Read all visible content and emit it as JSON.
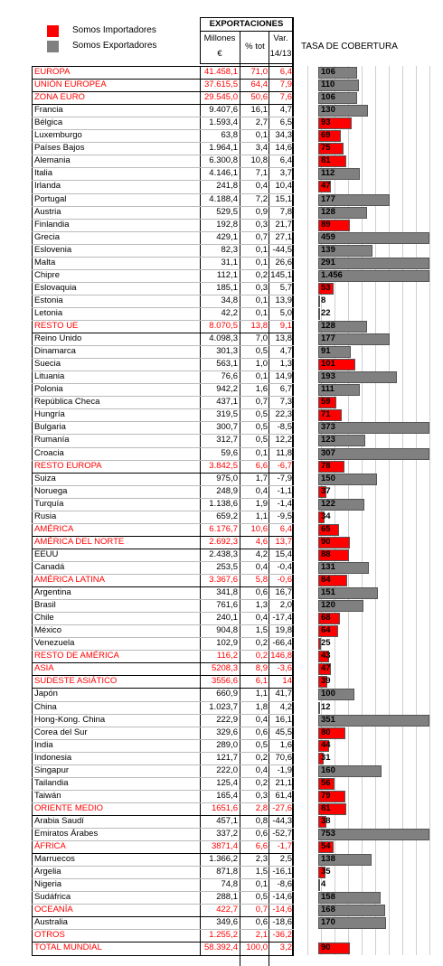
{
  "legend": [
    {
      "label": "Somos Importadores",
      "color": "#ff0000"
    },
    {
      "label": "Somos Exportadores",
      "color": "#808080"
    }
  ],
  "header": {
    "group": "EXPORTACIONES",
    "millones": "Millones",
    "euro": "€",
    "pct": "% tot",
    "var": "Var.",
    "var_period": "14/13",
    "tasa": "TASA DE COBERTURA"
  },
  "rows": [
    {
      "name": "EUROPA",
      "millones": "41.458,1",
      "pct": "71,0",
      "var": "6,4",
      "tasa": 106,
      "color": "#808080",
      "aggregate": true
    },
    {
      "name": "UNIÓN EUROPEA",
      "millones": "37.615,5",
      "pct": "64,4",
      "var": "7,9",
      "tasa": 110,
      "color": "#808080",
      "aggregate": true
    },
    {
      "name": "ZONA EURO",
      "millones": "29.545,0",
      "pct": "50,6",
      "var": "7,6",
      "tasa": 106,
      "color": "#808080",
      "aggregate": true
    },
    {
      "name": "Francia",
      "millones": "9.407,6",
      "pct": "16,1",
      "var": "4,7",
      "tasa": 130,
      "color": "#808080",
      "aggregate": false
    },
    {
      "name": "Bélgica",
      "millones": "1.593,4",
      "pct": "2,7",
      "var": "6,5",
      "tasa": 93,
      "color": "#ff0000",
      "aggregate": false
    },
    {
      "name": "Luxemburgo",
      "millones": "63,8",
      "pct": "0,1",
      "var": "34,3",
      "tasa": 69,
      "color": "#ff0000",
      "aggregate": false
    },
    {
      "name": "Países Bajos",
      "millones": "1.964,1",
      "pct": "3,4",
      "var": "14,6",
      "tasa": 75,
      "color": "#ff0000",
      "aggregate": false
    },
    {
      "name": "Alemania",
      "millones": "6.300,8",
      "pct": "10,8",
      "var": "6,4",
      "tasa": 81,
      "color": "#ff0000",
      "aggregate": false
    },
    {
      "name": "Italia",
      "millones": "4.146,1",
      "pct": "7,1",
      "var": "3,7",
      "tasa": 112,
      "color": "#808080",
      "aggregate": false
    },
    {
      "name": "Irlanda",
      "millones": "241,8",
      "pct": "0,4",
      "var": "10,4",
      "tasa": 47,
      "color": "#ff0000",
      "aggregate": false
    },
    {
      "name": "Portugal",
      "millones": "4.188,4",
      "pct": "7,2",
      "var": "15,1",
      "tasa": 177,
      "color": "#808080",
      "aggregate": false
    },
    {
      "name": "Austria",
      "millones": "529,5",
      "pct": "0,9",
      "var": "7,8",
      "tasa": 128,
      "color": "#808080",
      "aggregate": false
    },
    {
      "name": "Finlandia",
      "millones": "192,8",
      "pct": "0,3",
      "var": "21,7",
      "tasa": 89,
      "color": "#ff0000",
      "aggregate": false
    },
    {
      "name": "Grecia",
      "millones": "429,1",
      "pct": "0,7",
      "var": "27,1",
      "tasa": 459,
      "color": "#808080",
      "aggregate": false
    },
    {
      "name": "Eslovenia",
      "millones": "82,3",
      "pct": "0,1",
      "var": "-44,5",
      "tasa": 139,
      "color": "#808080",
      "aggregate": false
    },
    {
      "name": "Malta",
      "millones": "31,1",
      "pct": "0,1",
      "var": "26,6",
      "tasa": 291,
      "color": "#808080",
      "aggregate": false
    },
    {
      "name": "Chipre",
      "millones": "112,1",
      "pct": "0,2",
      "var": "145,1",
      "tasa": 1456,
      "tasa_label": "1.456",
      "color": "#808080",
      "aggregate": false
    },
    {
      "name": "Eslovaquia",
      "millones": "185,1",
      "pct": "0,3",
      "var": "5,7",
      "tasa": 53,
      "color": "#ff0000",
      "aggregate": false
    },
    {
      "name": "Estonia",
      "millones": "34,8",
      "pct": "0,1",
      "var": "13,9",
      "tasa": 8,
      "color": "#ff0000",
      "aggregate": false
    },
    {
      "name": "Letonia",
      "millones": "42,2",
      "pct": "0,1",
      "var": "5,0",
      "tasa": 22,
      "color": "#ff0000",
      "aggregate": false
    },
    {
      "name": "RESTO UE",
      "millones": "8.070,5",
      "pct": "13,8",
      "var": "9,1",
      "tasa": 128,
      "color": "#808080",
      "aggregate": true
    },
    {
      "name": "Reino Unido",
      "millones": "4.098,3",
      "pct": "7,0",
      "var": "13,8",
      "tasa": 177,
      "color": "#808080",
      "aggregate": false
    },
    {
      "name": "Dinamarca",
      "millones": "301,3",
      "pct": "0,5",
      "var": "4,7",
      "tasa": 91,
      "color": "#808080",
      "aggregate": false
    },
    {
      "name": "Suecia",
      "millones": "563,1",
      "pct": "1,0",
      "var": "1,3",
      "tasa": 101,
      "color": "#ff0000",
      "aggregate": false
    },
    {
      "name": "Lituania",
      "millones": "76,6",
      "pct": "0,1",
      "var": "14,9",
      "tasa": 193,
      "color": "#808080",
      "aggregate": false
    },
    {
      "name": "Polonia",
      "millones": "942,2",
      "pct": "1,6",
      "var": "6,7",
      "tasa": 111,
      "color": "#808080",
      "aggregate": false
    },
    {
      "name": "República Checa",
      "millones": "437,1",
      "pct": "0,7",
      "var": "7,3",
      "tasa": 59,
      "color": "#ff0000",
      "aggregate": false
    },
    {
      "name": "Hungría",
      "millones": "319,5",
      "pct": "0,5",
      "var": "22,3",
      "tasa": 71,
      "color": "#ff0000",
      "aggregate": false
    },
    {
      "name": "Bulgaria",
      "millones": "300,7",
      "pct": "0,5",
      "var": "-8,5",
      "tasa": 373,
      "color": "#808080",
      "aggregate": false
    },
    {
      "name": "Rumanía",
      "millones": "312,7",
      "pct": "0,5",
      "var": "12,2",
      "tasa": 123,
      "color": "#808080",
      "aggregate": false
    },
    {
      "name": "Croacia",
      "millones": "59,6",
      "pct": "0,1",
      "var": "11,8",
      "tasa": 307,
      "color": "#808080",
      "aggregate": false
    },
    {
      "name": "RESTO EUROPA",
      "millones": "3.842,5",
      "pct": "6,6",
      "var": "-6,7",
      "tasa": 78,
      "color": "#ff0000",
      "aggregate": true
    },
    {
      "name": "Suiza",
      "millones": "975,0",
      "pct": "1,7",
      "var": "-7,9",
      "tasa": 150,
      "color": "#808080",
      "aggregate": false
    },
    {
      "name": "Noruega",
      "millones": "248,9",
      "pct": "0,4",
      "var": "-1,1",
      "tasa": 37,
      "color": "#ff0000",
      "aggregate": false
    },
    {
      "name": "Turquía",
      "millones": "1.138,6",
      "pct": "1,9",
      "var": "-1,4",
      "tasa": 122,
      "color": "#808080",
      "aggregate": false
    },
    {
      "name": "Rusia",
      "millones": "659,2",
      "pct": "1,1",
      "var": "-9,5",
      "tasa": 34,
      "color": "#ff0000",
      "aggregate": false
    },
    {
      "name": "AMÉRICA",
      "millones": "6.176,7",
      "pct": "10,6",
      "var": "6,4",
      "tasa": 65,
      "color": "#ff0000",
      "aggregate": true
    },
    {
      "name": "AMÉRICA DEL NORTE",
      "millones": "2.692,3",
      "pct": "4,6",
      "var": "13,7",
      "tasa": 90,
      "color": "#ff0000",
      "aggregate": true
    },
    {
      "name": "EEUU",
      "millones": "2.438,3",
      "pct": "4,2",
      "var": "15,4",
      "tasa": 88,
      "color": "#ff0000",
      "aggregate": false
    },
    {
      "name": "Canadá",
      "millones": "253,5",
      "pct": "0,4",
      "var": "-0,4",
      "tasa": 131,
      "color": "#808080",
      "aggregate": false
    },
    {
      "name": "AMÉRICA LATINA",
      "millones": "3.367,6",
      "pct": "5,8",
      "var": "-0,6",
      "tasa": 84,
      "color": "#ff0000",
      "aggregate": true
    },
    {
      "name": "Argentina",
      "millones": "341,8",
      "pct": "0,6",
      "var": "16,7",
      "tasa": 151,
      "color": "#808080",
      "aggregate": false
    },
    {
      "name": "Brasil",
      "millones": "761,6",
      "pct": "1,3",
      "var": "2,0",
      "tasa": 120,
      "color": "#808080",
      "aggregate": false
    },
    {
      "name": "Chile",
      "millones": "240,1",
      "pct": "0,4",
      "var": "-17,4",
      "tasa": 68,
      "color": "#ff0000",
      "aggregate": false
    },
    {
      "name": "México",
      "millones": "904,8",
      "pct": "1,5",
      "var": "19,8",
      "tasa": 64,
      "color": "#ff0000",
      "aggregate": false
    },
    {
      "name": "Venezuela",
      "millones": "102,9",
      "pct": "0,2",
      "var": "-66,4",
      "tasa": 25,
      "color": "#ff0000",
      "aggregate": false
    },
    {
      "name": "RESTO DE AMÉRICA",
      "millones": "116,2",
      "pct": "0,2",
      "var": "146,8",
      "tasa": 43,
      "color": "#ff0000",
      "aggregate": true
    },
    {
      "name": "ASIA",
      "millones": "5208,3",
      "pct": "8,9",
      "var": "-3,6",
      "tasa": 47,
      "color": "#ff0000",
      "aggregate": true
    },
    {
      "name": "SUDESTE ASIÁTICO",
      "millones": "3556,6",
      "pct": "6,1",
      "var": "14",
      "tasa": 39,
      "color": "#ff0000",
      "aggregate": true
    },
    {
      "name": "Japón",
      "millones": "660,9",
      "pct": "1,1",
      "var": "41,7",
      "tasa": 100,
      "color": "#808080",
      "aggregate": false
    },
    {
      "name": "China",
      "millones": "1.023,7",
      "pct": "1,8",
      "var": "4,2",
      "tasa": 12,
      "color": "#ff0000",
      "aggregate": false
    },
    {
      "name": "Hong-Kong. China",
      "millones": "222,9",
      "pct": "0,4",
      "var": "16,1",
      "tasa": 351,
      "color": "#808080",
      "aggregate": false
    },
    {
      "name": "Corea del Sur",
      "millones": "329,6",
      "pct": "0,6",
      "var": "45,5",
      "tasa": 80,
      "color": "#ff0000",
      "aggregate": false
    },
    {
      "name": "India",
      "millones": "289,0",
      "pct": "0,5",
      "var": "1,6",
      "tasa": 44,
      "color": "#ff0000",
      "aggregate": false
    },
    {
      "name": "Indonesia",
      "millones": "121,7",
      "pct": "0,2",
      "var": "70,6",
      "tasa": 31,
      "color": "#ff0000",
      "aggregate": false
    },
    {
      "name": "Singapur",
      "millones": "222,0",
      "pct": "0,4",
      "var": "-1,9",
      "tasa": 160,
      "color": "#808080",
      "aggregate": false
    },
    {
      "name": "Tailandia",
      "millones": "125,4",
      "pct": "0,2",
      "var": "21,1",
      "tasa": 56,
      "color": "#ff0000",
      "aggregate": false
    },
    {
      "name": "Taiwán",
      "millones": "165,4",
      "pct": "0,3",
      "var": "61,4",
      "tasa": 79,
      "color": "#ff0000",
      "aggregate": false
    },
    {
      "name": "ORIENTE MEDIO",
      "millones": "1651,6",
      "pct": "2,8",
      "var": "-27,6",
      "tasa": 81,
      "color": "#ff0000",
      "aggregate": true
    },
    {
      "name": "Arabia Saudí",
      "millones": "457,1",
      "pct": "0,8",
      "var": "-44,3",
      "tasa": 38,
      "color": "#ff0000",
      "aggregate": false
    },
    {
      "name": "Emiratos Árabes",
      "millones": "337,2",
      "pct": "0,6",
      "var": "-52,7",
      "tasa": 753,
      "color": "#808080",
      "aggregate": false
    },
    {
      "name": "ÁFRICA",
      "millones": "3871,4",
      "pct": "6,6",
      "var": "-1,7",
      "tasa": 54,
      "color": "#ff0000",
      "aggregate": true
    },
    {
      "name": "Marruecos",
      "millones": "1.366,2",
      "pct": "2,3",
      "var": "2,5",
      "tasa": 138,
      "color": "#808080",
      "aggregate": false
    },
    {
      "name": "Argelia",
      "millones": "871,8",
      "pct": "1,5",
      "var": "-16,1",
      "tasa": 35,
      "color": "#ff0000",
      "aggregate": false
    },
    {
      "name": "Nigeria",
      "millones": "74,8",
      "pct": "0,1",
      "var": "-8,6",
      "tasa": 4,
      "color": "#ff0000",
      "aggregate": false
    },
    {
      "name": "Sudáfrica",
      "millones": "288,1",
      "pct": "0,5",
      "var": "-14,6",
      "tasa": 158,
      "color": "#808080",
      "aggregate": false
    },
    {
      "name": "OCEANÍA",
      "millones": "422,7",
      "pct": "0,7",
      "var": "-14,6",
      "tasa": 168,
      "color": "#808080",
      "aggregate": true
    },
    {
      "name": "Australia",
      "millones": "349,6",
      "pct": "0,6",
      "var": "-18,6",
      "tasa": 170,
      "color": "#808080",
      "aggregate": false
    },
    {
      "name": "OTROS",
      "millones": "1.255,2",
      "pct": "2,1",
      "var": "-36,2",
      "tasa": null,
      "color": "#808080",
      "aggregate": true
    },
    {
      "name": "TOTAL MUNDIAL",
      "millones": "58.392,4",
      "pct": "100,0",
      "var": "3,2",
      "tasa": 90,
      "color": "#ff0000",
      "aggregate": true
    }
  ]
}
